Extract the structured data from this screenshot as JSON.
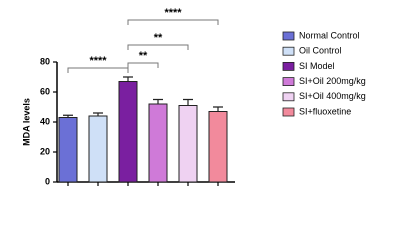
{
  "chart_data": {
    "type": "bar",
    "ylabel": "MDA levels",
    "categories": [
      "Normal Control",
      "Oil Control",
      "SI Model",
      "SI+Oil 200mg/kg",
      "SI+Oil 400mg/kg",
      "SI+fluoxetine"
    ],
    "values": [
      43,
      44,
      67,
      52,
      51,
      47
    ],
    "errors": [
      1.5,
      2,
      3,
      3,
      4,
      3
    ],
    "colors": [
      "#6b70d6",
      "#cfe0f7",
      "#7a1fa0",
      "#cf7ad8",
      "#efd2f2",
      "#f28a9c"
    ],
    "ylim": [
      0,
      80
    ],
    "yticks": [
      0,
      20,
      40,
      60,
      80
    ],
    "annotations": [
      {
        "label": "****",
        "between": [
          "Normal Control",
          "SI Model"
        ]
      },
      {
        "label": "**",
        "between": [
          "SI Model",
          "SI+Oil 200mg/kg"
        ]
      },
      {
        "label": "**",
        "between": [
          "SI Model",
          "SI+Oil 400mg/kg"
        ]
      },
      {
        "label": "****",
        "between": [
          "SI Model",
          "SI+fluoxetine"
        ]
      }
    ]
  }
}
